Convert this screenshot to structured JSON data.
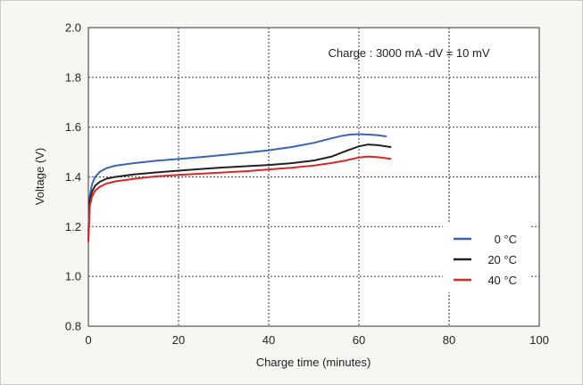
{
  "chart_data": {
    "type": "line",
    "annotation": "Charge : 3000 mA -dV = 10 mV",
    "xlabel": "Charge time (minutes)",
    "ylabel": "Voltage (V)",
    "xlim": [
      0,
      100
    ],
    "ylim": [
      0.8,
      2.0
    ],
    "x_ticks": [
      0,
      20,
      40,
      60,
      80,
      100
    ],
    "y_ticks": [
      0.8,
      1.0,
      1.2,
      1.4,
      1.6,
      1.8,
      2.0
    ],
    "x_tick_labels": [
      "0",
      "20",
      "40",
      "60",
      "80",
      "100"
    ],
    "y_tick_labels": [
      "0.8",
      "1.0",
      "1.2",
      "1.4",
      "1.6",
      "1.8",
      "2.0"
    ],
    "grid": true,
    "legend_position": "right-middle",
    "series": [
      {
        "name": "0 °C",
        "color": "#3b63b5",
        "x": [
          0,
          0.3,
          0.8,
          1.5,
          2.5,
          4,
          6,
          10,
          15,
          20,
          25,
          30,
          35,
          40,
          45,
          50,
          53,
          56,
          58,
          60,
          62,
          64,
          66
        ],
        "y": [
          1.18,
          1.32,
          1.37,
          1.4,
          1.42,
          1.435,
          1.445,
          1.455,
          1.465,
          1.472,
          1.48,
          1.488,
          1.497,
          1.507,
          1.52,
          1.537,
          1.551,
          1.564,
          1.57,
          1.572,
          1.57,
          1.568,
          1.563
        ]
      },
      {
        "name": "20 °C",
        "color": "#222222",
        "x": [
          0,
          0.3,
          0.8,
          1.5,
          2.5,
          4,
          6,
          10,
          15,
          20,
          25,
          30,
          35,
          40,
          45,
          50,
          54,
          57,
          60,
          62,
          64,
          67
        ],
        "y": [
          1.15,
          1.3,
          1.34,
          1.365,
          1.38,
          1.393,
          1.4,
          1.41,
          1.418,
          1.425,
          1.432,
          1.438,
          1.443,
          1.448,
          1.455,
          1.466,
          1.482,
          1.503,
          1.523,
          1.53,
          1.528,
          1.52
        ]
      },
      {
        "name": "40 °C",
        "color": "#d42a2a",
        "x": [
          0,
          0.3,
          0.8,
          1.5,
          2.5,
          4,
          6,
          10,
          15,
          20,
          25,
          30,
          35,
          40,
          45,
          50,
          54,
          57,
          60,
          62,
          64,
          67
        ],
        "y": [
          1.14,
          1.28,
          1.32,
          1.345,
          1.36,
          1.373,
          1.382,
          1.392,
          1.402,
          1.408,
          1.413,
          1.418,
          1.423,
          1.43,
          1.437,
          1.446,
          1.456,
          1.466,
          1.478,
          1.482,
          1.48,
          1.473
        ]
      }
    ]
  }
}
